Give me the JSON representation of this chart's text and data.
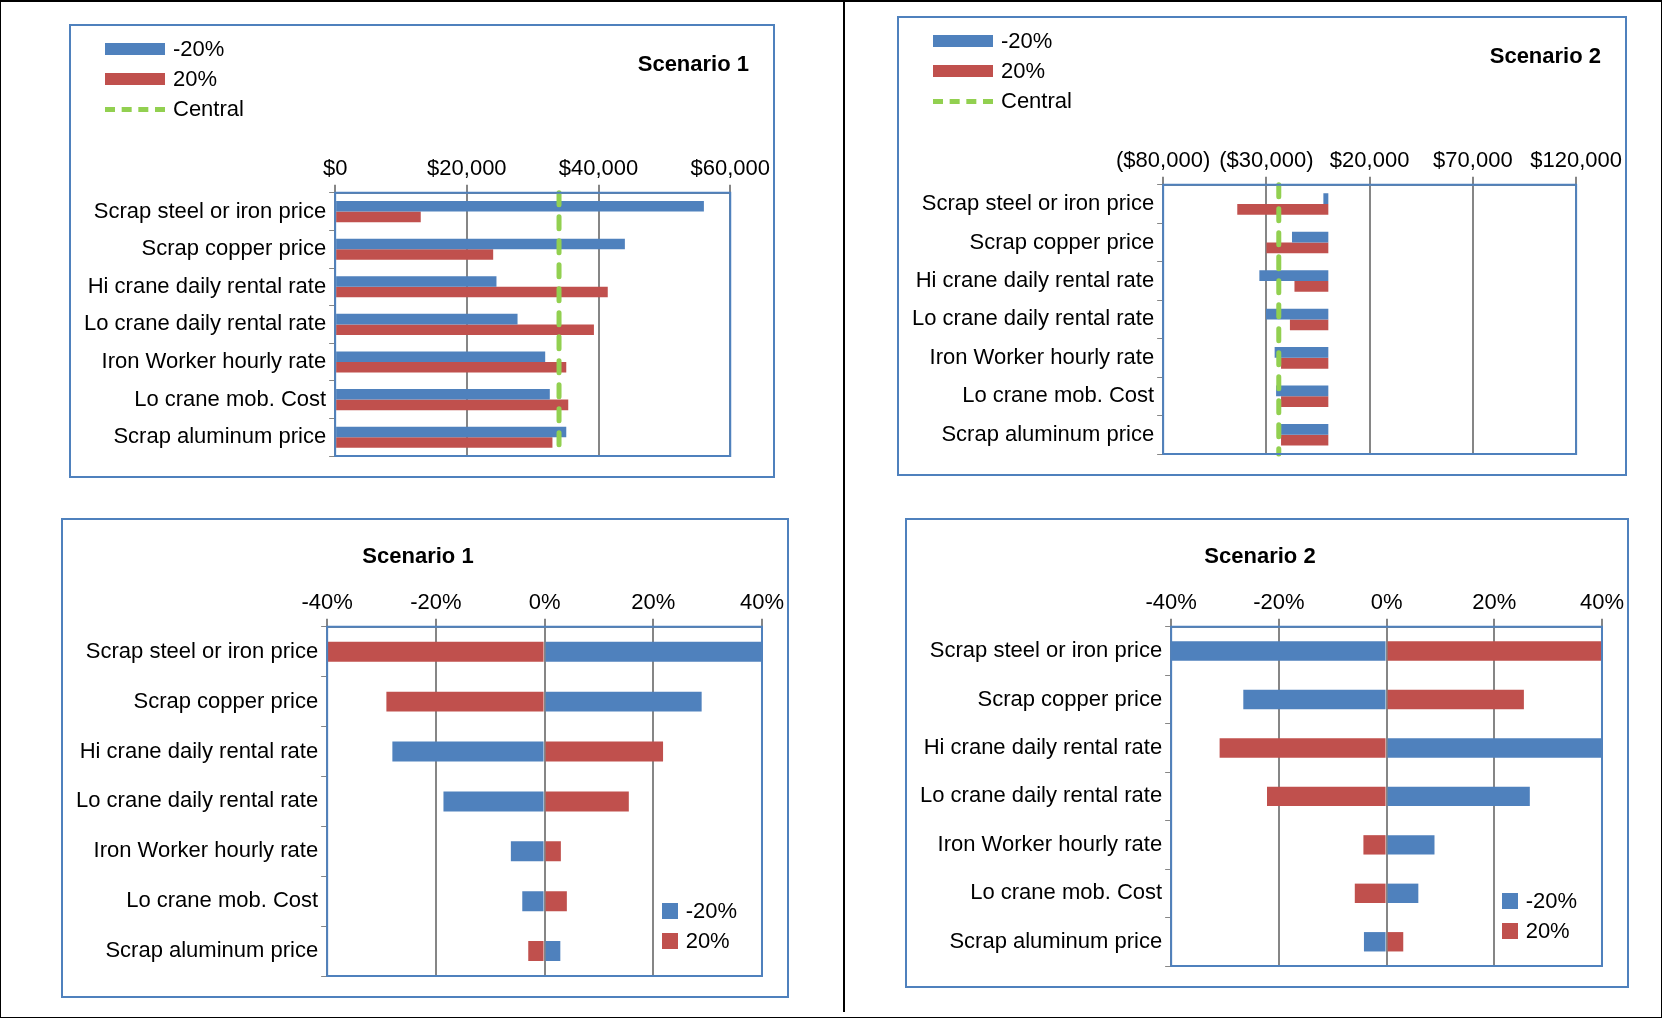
{
  "chart_data": [
    {
      "type": "bar",
      "title": "Scenario 1",
      "orientation": "horizontal",
      "categories": [
        "Scrap steel or iron price",
        "Scrap copper price",
        "Hi crane daily rental rate",
        "Lo crane daily rental rate",
        "Iron Worker hourly rate",
        "Lo crane mob. Cost",
        "Scrap aluminum price"
      ],
      "series": [
        {
          "name": "-20%",
          "color": "#4f81bd",
          "values": [
            56000,
            44000,
            24500,
            27700,
            31900,
            32600,
            35100
          ]
        },
        {
          "name": "20%",
          "color": "#c0504d",
          "values": [
            13000,
            24000,
            41400,
            39300,
            35100,
            35400,
            33000
          ]
        }
      ],
      "ref_lines": [
        {
          "axis": "x",
          "value": 34000,
          "label": "Central",
          "color": "#92d050",
          "line_style": "dashed"
        }
      ],
      "xlim": [
        0,
        60000
      ],
      "xticks": [
        {
          "value": 0,
          "label": "$0"
        },
        {
          "value": 20000,
          "label": "$20,000"
        },
        {
          "value": 40000,
          "label": "$40,000"
        },
        {
          "value": 60000,
          "label": "$60,000"
        }
      ],
      "grid": "x",
      "legend": "top left"
    },
    {
      "type": "bar",
      "title": "Scenario 2",
      "orientation": "horizontal",
      "categories": [
        "Scrap steel or iron price",
        "Scrap copper price",
        "Hi crane daily rental rate",
        "Lo crane daily rental rate",
        "Iron Worker hourly rate",
        "Lo crane mob. Cost",
        "Scrap aluminum price"
      ],
      "series": [
        {
          "name": "-20%",
          "color": "#4f81bd",
          "values": [
            -2400,
            -17600,
            -33400,
            -30200,
            -26000,
            -25300,
            -22900
          ]
        },
        {
          "name": "20%",
          "color": "#c0504d",
          "values": [
            -44100,
            -30000,
            -16400,
            -18600,
            -22900,
            -22900,
            -22900
          ]
        }
      ],
      "ref_lines": [
        {
          "axis": "x",
          "value": -24000,
          "label": "Central",
          "color": "#92d050",
          "line_style": "dashed"
        }
      ],
      "xlim": [
        -80000,
        120000
      ],
      "xticks": [
        {
          "value": -80000,
          "label": "($80,000)"
        },
        {
          "value": -30000,
          "label": "($30,000)"
        },
        {
          "value": 20000,
          "label": "$20,000"
        },
        {
          "value": 70000,
          "label": "$70,000"
        },
        {
          "value": 120000,
          "label": "$120,000"
        }
      ],
      "grid": "x",
      "legend": "top left"
    },
    {
      "type": "bar",
      "title": "Scenario 1",
      "orientation": "horizontal",
      "stacked": true,
      "categories": [
        "Scrap steel or iron price",
        "Scrap copper price",
        "Hi crane daily rental rate",
        "Lo crane daily rental rate",
        "Iron Worker hourly rate",
        "Lo crane mob. Cost",
        "Scrap aluminum price"
      ],
      "series": [
        {
          "name": "-20%",
          "color": "#4f81bd",
          "values": [
            40,
            28.9,
            -28,
            -18.6,
            -6.2,
            -4.1,
            2.9
          ]
        },
        {
          "name": "20%",
          "color": "#c0504d",
          "values": [
            -40,
            -29.1,
            21.8,
            15.5,
            3,
            4.1,
            -3
          ]
        }
      ],
      "xlim": [
        -40,
        40
      ],
      "xticks": [
        {
          "value": -40,
          "label": "-40%"
        },
        {
          "value": -20,
          "label": "-20%"
        },
        {
          "value": 0,
          "label": "0%"
        },
        {
          "value": 20,
          "label": "20%"
        },
        {
          "value": 40,
          "label": "40%"
        }
      ],
      "grid": "x",
      "legend": "bottom right"
    },
    {
      "type": "bar",
      "title": "Scenario 2",
      "orientation": "horizontal",
      "stacked": true,
      "categories": [
        "Scrap steel or iron price",
        "Scrap copper price",
        "Hi crane daily rental rate",
        "Lo crane daily rental rate",
        "Iron Worker hourly rate",
        "Lo crane mob. Cost",
        "Scrap aluminum price"
      ],
      "series": [
        {
          "name": "-20%",
          "color": "#4f81bd",
          "values": [
            -40,
            -26.6,
            40,
            26.6,
            8.9,
            5.9,
            -4.2
          ]
        },
        {
          "name": "20%",
          "color": "#c0504d",
          "values": [
            40,
            25.5,
            -31,
            -22.2,
            -4.3,
            -5.9,
            3.1
          ]
        }
      ],
      "xlim": [
        -40,
        40
      ],
      "xticks": [
        {
          "value": -40,
          "label": "-40%"
        },
        {
          "value": -20,
          "label": "-20%"
        },
        {
          "value": 0,
          "label": "0%"
        },
        {
          "value": 20,
          "label": "20%"
        },
        {
          "value": 40,
          "label": "40%"
        }
      ],
      "grid": "x",
      "legend": "bottom right"
    }
  ]
}
